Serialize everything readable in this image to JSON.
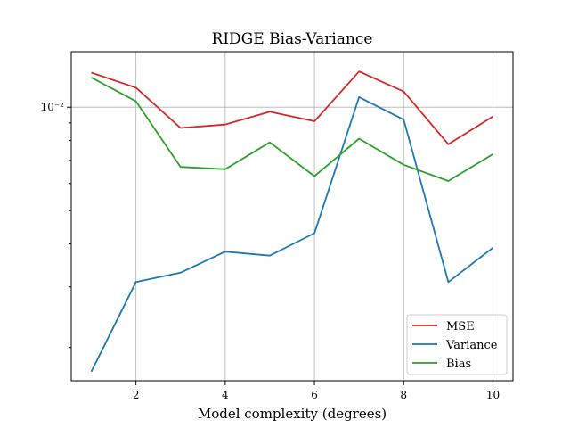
{
  "chart_data": {
    "type": "line",
    "title": "RIDGE Bias-Variance",
    "xlabel": "Model complexity (degrees)",
    "ylabel": "",
    "x": [
      1,
      2,
      3,
      4,
      5,
      6,
      7,
      8,
      9,
      10
    ],
    "xticks": [
      2,
      4,
      6,
      8,
      10
    ],
    "xtick_labels": [
      "2",
      "4",
      "6",
      "8",
      "10"
    ],
    "xlim": [
      0.55,
      10.45
    ],
    "yscale": "log",
    "ylim": [
      0.0016,
      0.0145
    ],
    "ytick_values": [
      0.01
    ],
    "ytick_labels": [
      "10⁻²"
    ],
    "grid": true,
    "legend_position": "lower-right",
    "series": [
      {
        "name": "MSE",
        "color": "#d62728",
        "values": [
          0.0126,
          0.0114,
          0.0087,
          0.0089,
          0.0097,
          0.0091,
          0.0127,
          0.0111,
          0.0078,
          0.0094
        ]
      },
      {
        "name": "Variance",
        "color": "#1f77b4",
        "values": [
          0.0017,
          0.0031,
          0.0033,
          0.0038,
          0.0037,
          0.0043,
          0.0107,
          0.0092,
          0.0031,
          0.0039
        ]
      },
      {
        "name": "Bias",
        "color": "#2ca02c",
        "values": [
          0.0122,
          0.0104,
          0.0067,
          0.0066,
          0.0079,
          0.0063,
          0.0081,
          0.0068,
          0.0061,
          0.0073
        ]
      }
    ]
  }
}
